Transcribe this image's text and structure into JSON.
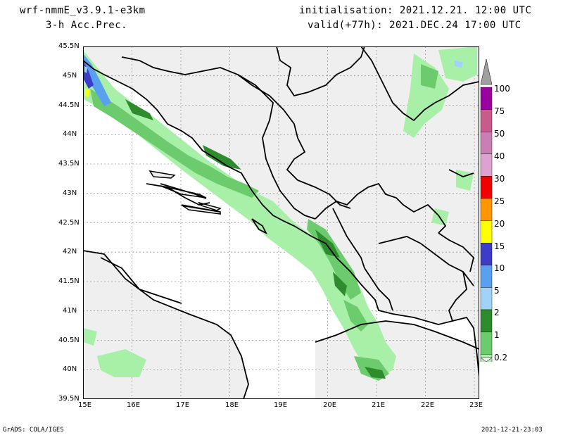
{
  "header": {
    "model": "wrf-nmmE_v3.9.1-e3km",
    "field": "3-h Acc.Prec.",
    "init": "initialisation: 2021.12.21.  12:00 UTC",
    "valid": "valid(+77h): 2021.DEC.24 17:00 UTC"
  },
  "footer": {
    "credit": "GrADS: COLA/IGES",
    "timestamp": "2021-12-21-23:03"
  },
  "map": {
    "lat_labels": [
      "45.5N",
      "45N",
      "44.5N",
      "44N",
      "43.5N",
      "43N",
      "42.5N",
      "42N",
      "41.5N",
      "41N",
      "40.5N",
      "40N",
      "39.5N"
    ],
    "lon_labels": [
      "15E",
      "16E",
      "17E",
      "18E",
      "19E",
      "20E",
      "21E",
      "22E",
      "23E"
    ],
    "lat_range": [
      39.5,
      45.5
    ],
    "lon_range": [
      15,
      23.1
    ],
    "land_color": "#efefef",
    "sea_color": "#ffffff"
  },
  "colorbar": {
    "labels": [
      "100",
      "75",
      "50",
      "40",
      "30",
      "25",
      "20",
      "15",
      "10",
      "5",
      "2",
      "1",
      "0.2"
    ],
    "colors": [
      "#9b00a0",
      "#c85a8c",
      "#c97fb3",
      "#e0a0d0",
      "#f00000",
      "#ff9600",
      "#ffff00",
      "#3c3cc8",
      "#5aa0f0",
      "#a0d2fa",
      "#2e8b2e",
      "#6ccb6c",
      "#a8f0a8"
    ]
  }
}
